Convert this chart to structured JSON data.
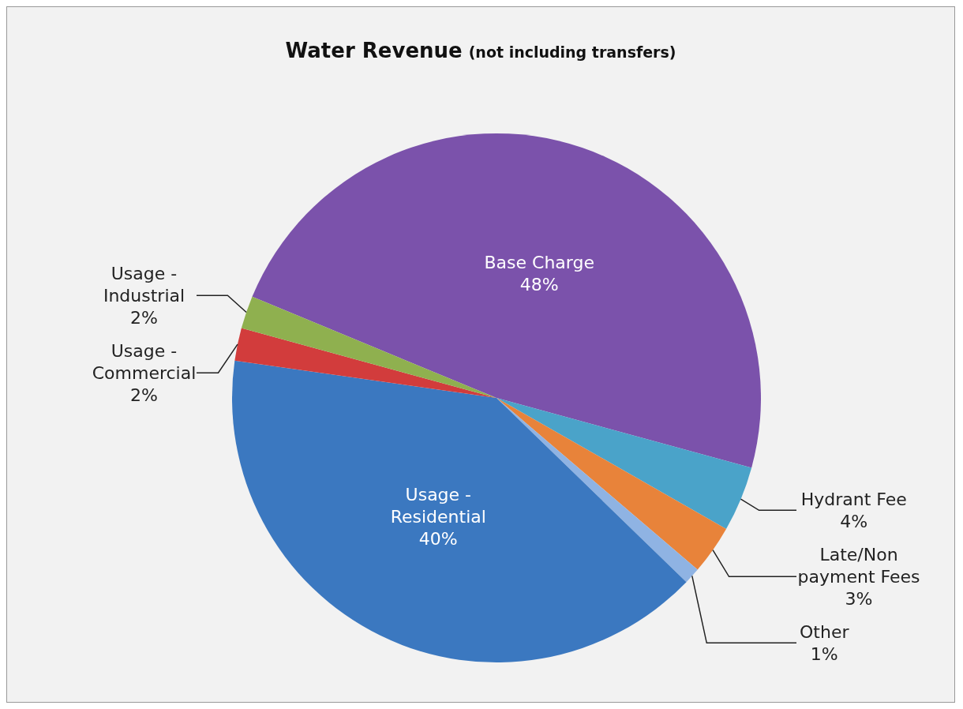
{
  "chart_data": {
    "type": "pie",
    "title": "Water Revenue",
    "subtitle": "(not including transfers)",
    "categories": [
      "Base Charge",
      "Hydrant Fee",
      "Late/Non payment Fees",
      "Other",
      "Usage - Residential",
      "Usage - Commercial",
      "Usage - Industrial"
    ],
    "values": [
      48,
      4,
      3,
      1,
      40,
      2,
      2
    ],
    "value_labels": [
      "48%",
      "4%",
      "3%",
      "1%",
      "40%",
      "2%",
      "2%"
    ],
    "colors": [
      "#7b52ab",
      "#4aa3c9",
      "#e8833a",
      "#8fb3e3",
      "#3b78c0",
      "#d23c3c",
      "#8fb04f"
    ],
    "legend": false
  }
}
